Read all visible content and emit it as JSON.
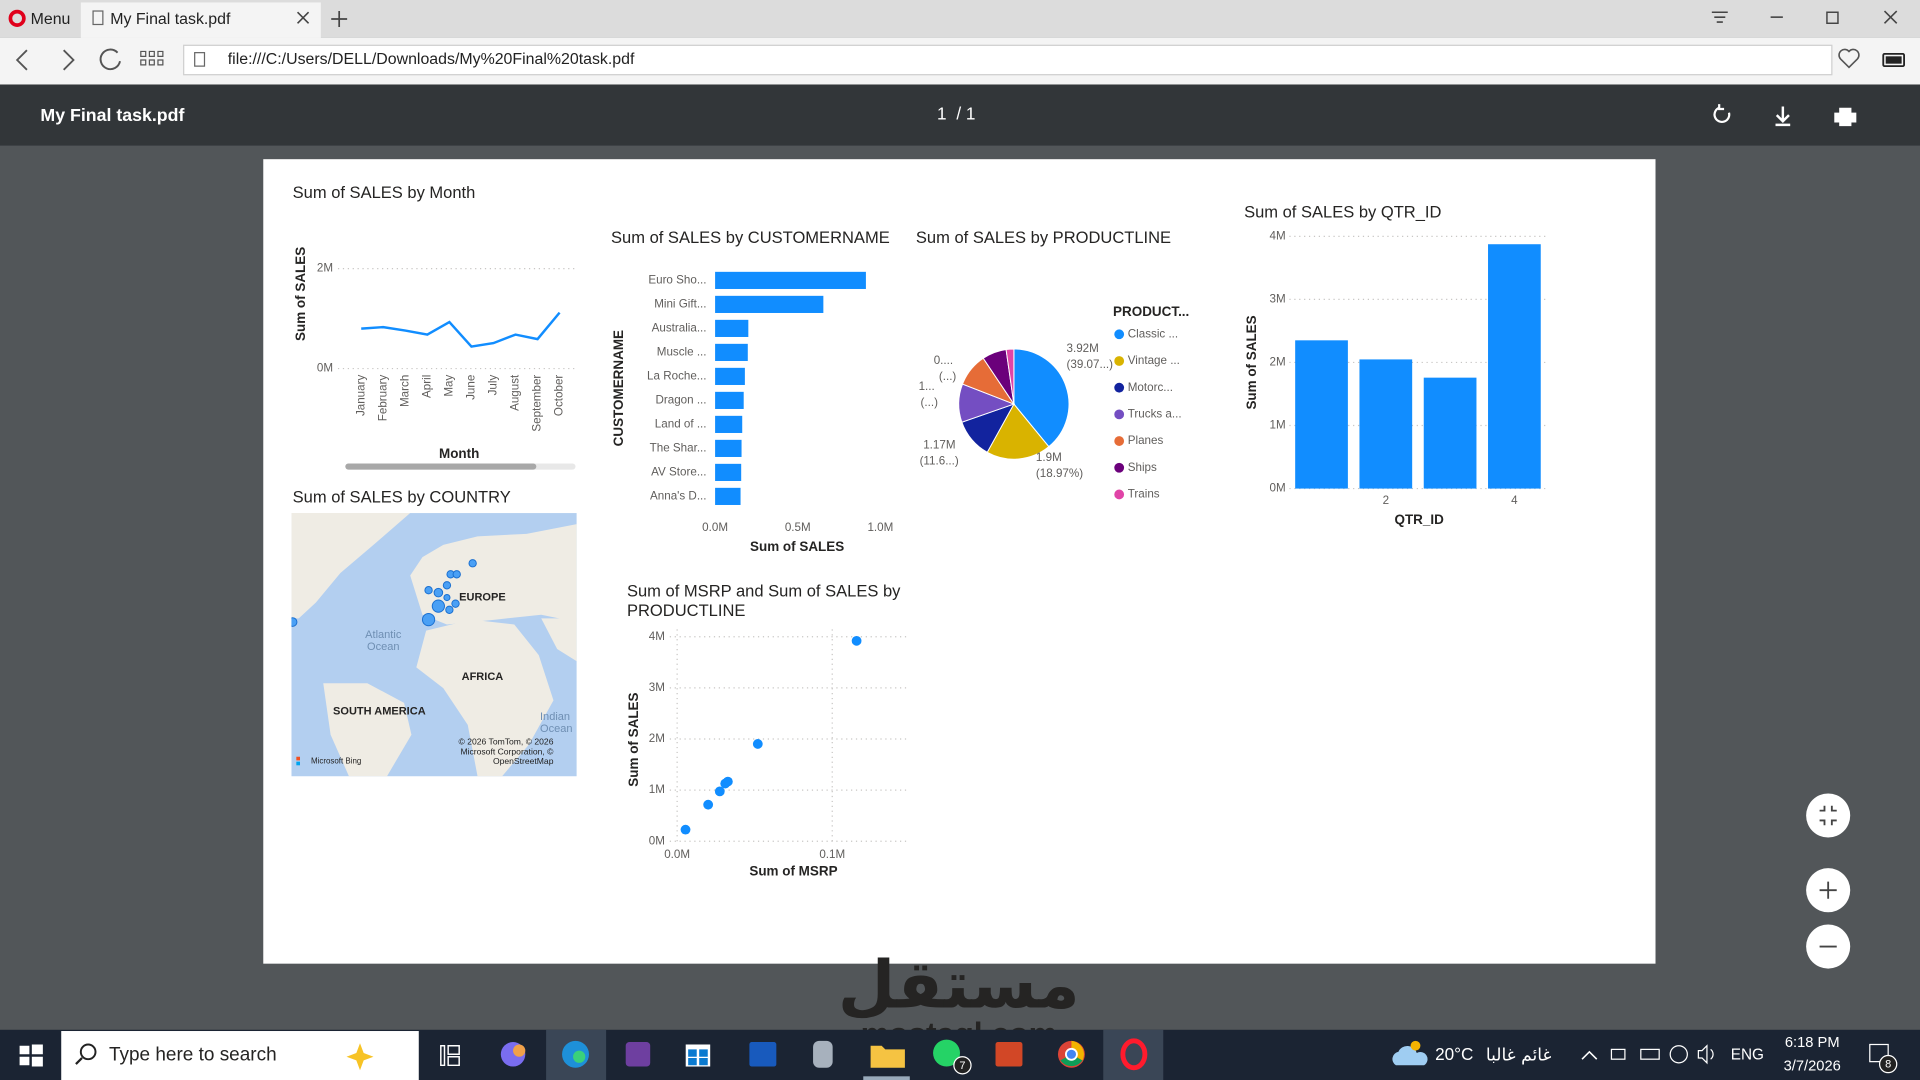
{
  "browser": {
    "menu": "Menu",
    "tab_title": "My Final task.pdf",
    "url": "file:///C:/Users/DELL/Downloads/My%20Final%20task.pdf"
  },
  "viewer": {
    "title": "My Final task.pdf",
    "page": "1",
    "page_total": "/ 1"
  },
  "chart_data": [
    {
      "type": "line",
      "title": "Sum of SALES by Month",
      "x_label": "Month",
      "y_label": "Sum of SALES",
      "categories": [
        "January",
        "February",
        "March",
        "April",
        "May",
        "June",
        "July",
        "August",
        "September",
        "October"
      ],
      "values": [
        800000,
        830000,
        760000,
        680000,
        930000,
        440000,
        510000,
        680000,
        590000,
        1120000
      ],
      "color": "#118dff",
      "ylim": [
        0,
        2500000
      ],
      "yticks": [
        {
          "value": 0,
          "label": "0M"
        },
        {
          "value": 2000000,
          "label": "2M"
        }
      ],
      "grid": true
    },
    {
      "type": "hbar",
      "title": "Sum of SALES by CUSTOMERNAME",
      "x_label": "Sum of SALES",
      "y_label": "CUSTOMERNAME",
      "categories": [
        "Euro Sho...",
        "Mini Gift...",
        "Australia...",
        "Muscle ...",
        "La Roche...",
        "Dragon ...",
        "Land of ...",
        "The Shar...",
        "AV Store...",
        "Anna's D..."
      ],
      "values": [
        912294,
        654858,
        200995,
        197736,
        180124,
        172989,
        164069,
        160010,
        157807,
        153996
      ],
      "color": "#118dff",
      "xlim": [
        0,
        1000000
      ],
      "xticks": [
        {
          "value": 0,
          "label": "0.0M"
        },
        {
          "value": 500000,
          "label": "0.5M"
        },
        {
          "value": 1000000,
          "label": "1.0M"
        }
      ]
    },
    {
      "type": "pie",
      "title": "Sum of SALES by PRODUCTLINE",
      "legend_title": "PRODUCT...",
      "categories": [
        "Classic ...",
        "Vintage ...",
        "Motorc...",
        "Trucks a...",
        "Planes",
        "Ships",
        "Trains"
      ],
      "values": [
        3919616,
        1903151,
        1166388,
        1127790,
        975004,
        714437,
        226243
      ],
      "value_labels": [
        "3.92M (39.07...)",
        "1.9M (18.97%)",
        "1.17M (11.6...)",
        "1... (...)",
        "0.... (...)",
        null,
        null
      ],
      "colors": [
        "#118dff",
        "#d9b300",
        "#12239e",
        "#744ec2",
        "#e66c37",
        "#6b007b",
        "#e044a7"
      ]
    },
    {
      "type": "bar",
      "title": "Sum of SALES by QTR_ID",
      "x_label": "QTR_ID",
      "y_label": "Sum of SALES",
      "categories": [
        null,
        "2",
        null,
        "4"
      ],
      "values": [
        2350818,
        2048120,
        1758910,
        3874780
      ],
      "color": "#118dff",
      "ylim": [
        0,
        4000000
      ],
      "yticks": [
        {
          "value": 0,
          "label": "0M"
        },
        {
          "value": 1000000,
          "label": "1M"
        },
        {
          "value": 2000000,
          "label": "2M"
        },
        {
          "value": 3000000,
          "label": "3M"
        },
        {
          "value": 4000000,
          "label": "4M"
        }
      ],
      "grid": true
    },
    {
      "type": "scatter",
      "title": "Sum of MSRP and Sum of SALES by PRODUCTLINE",
      "x_label": "Sum of MSRP",
      "y_label": "Sum of SALES",
      "x": [
        115700,
        52000,
        32700,
        31000,
        27500,
        20000,
        5400
      ],
      "values": [
        3919616,
        1903151,
        1166388,
        1127790,
        975004,
        714437,
        226243
      ],
      "color": "#118dff",
      "xlim": [
        0,
        150000
      ],
      "ylim": [
        0,
        4000000
      ],
      "xticks": [
        {
          "value": 0,
          "label": "0.0M"
        },
        {
          "value": 100000,
          "label": "0.1M"
        }
      ],
      "yticks": [
        {
          "value": 0,
          "label": "0M"
        },
        {
          "value": 1000000,
          "label": "1M"
        },
        {
          "value": 2000000,
          "label": "2M"
        },
        {
          "value": 3000000,
          "label": "3M"
        },
        {
          "value": 4000000,
          "label": "4M"
        }
      ],
      "grid": true
    }
  ],
  "map": {
    "title": "Sum of SALES by COUNTRY",
    "europe": "EUROPE",
    "africa": "AFRICA",
    "south_america": "SOUTH AMERICA",
    "atlantic": "Atlantic Ocean",
    "indian": "Indian Ocean",
    "attribution": "© 2026 TomTom, © 2026 Microsoft Corporation, © OpenStreetMap",
    "brand": "Microsoft Bing"
  },
  "taskbar": {
    "search": "Type here to search",
    "temperature": "20°C",
    "weather": "غائم غالبا",
    "language": "ENG",
    "time": "6:18 PM",
    "date": "3/7/2026",
    "whatsapp_badge": "7",
    "notifications": "8"
  },
  "watermark": {
    "arabic": "مستقل",
    "latin": "mostaql.com"
  }
}
